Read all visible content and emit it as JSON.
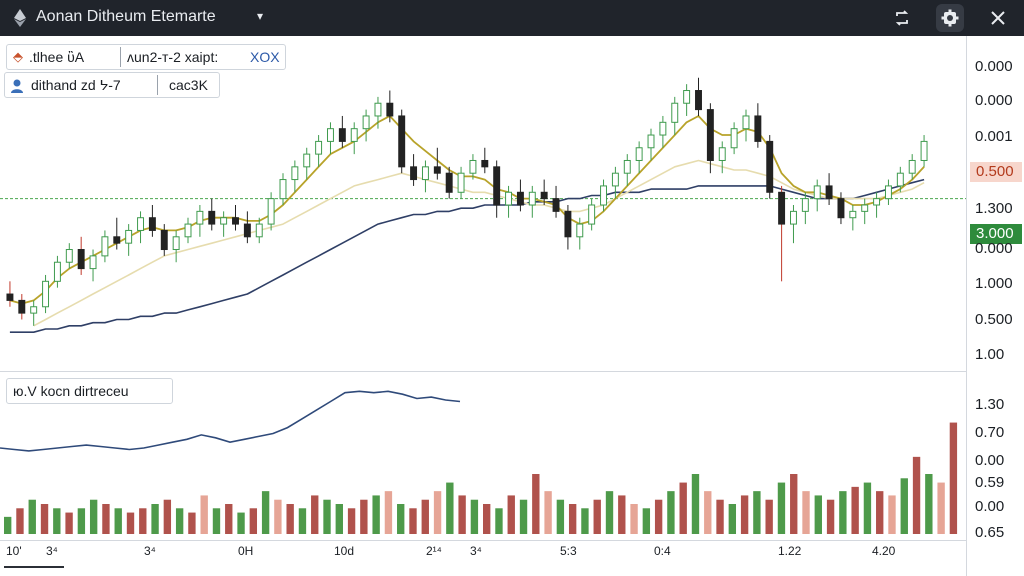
{
  "window": {
    "title": "Aonan Ditheum Etemarte",
    "title_caret": "▾"
  },
  "toolbar": {
    "sync_icon": "sync-icon",
    "settings_icon": "gear-icon",
    "close_icon": "close-icon"
  },
  "legends": {
    "top": {
      "symbol": "⬘",
      "label_1": ".tlhee ὒA",
      "label_2": "ᴧun2-ᴛ-2 xaipt:",
      "label_3": "XOX"
    },
    "second": {
      "icon": "user-icon",
      "label_1": "dithand zd ᔭ-7",
      "label_2": "cac3K"
    },
    "indicator": {
      "label": "ю.V koᴄn dirtreᴄeu"
    }
  },
  "axes": {
    "main_right_labels": [
      "0.000",
      "0.000",
      "0.001",
      "1.300",
      "0.000",
      "1.000",
      "0.500",
      "1.00"
    ],
    "price_tag_red": "0.500",
    "price_tag_green": "3.000",
    "sub_right_labels": [
      "1.30",
      "0.70",
      "0.00",
      "0.59",
      "0.00",
      "0.65"
    ],
    "x_labels": [
      "10'",
      "3⁴",
      "3⁴",
      "0H",
      "10d",
      "2¹⁴",
      "3⁴",
      "5:3",
      "0:4",
      "1.22",
      "4.20"
    ]
  },
  "colors": {
    "up": "#3f9b4e",
    "down": "#222222",
    "ma_fast": "#b8a32a",
    "ma_mid": "#e6dcae",
    "ma_slow": "#2f3f66",
    "ref_line": "#4aa64f",
    "vol_up": "#4e9a4a",
    "vol_down": "#b0524c",
    "vol_light": "#e6a596"
  },
  "chart_data": [
    {
      "type": "candlestick",
      "candles": [
        [
          0.82,
          0.86,
          0.78,
          0.8
        ],
        [
          0.8,
          0.82,
          0.74,
          0.76
        ],
        [
          0.76,
          0.8,
          0.72,
          0.78
        ],
        [
          0.78,
          0.88,
          0.76,
          0.86
        ],
        [
          0.86,
          0.94,
          0.84,
          0.92
        ],
        [
          0.92,
          0.98,
          0.9,
          0.96
        ],
        [
          0.96,
          1.0,
          0.88,
          0.9
        ],
        [
          0.9,
          0.96,
          0.86,
          0.94
        ],
        [
          0.94,
          1.02,
          0.92,
          1.0
        ],
        [
          1.0,
          1.06,
          0.96,
          0.98
        ],
        [
          0.98,
          1.04,
          0.94,
          1.02
        ],
        [
          1.02,
          1.08,
          0.98,
          1.06
        ],
        [
          1.06,
          1.1,
          1.0,
          1.02
        ],
        [
          1.02,
          1.04,
          0.94,
          0.96
        ],
        [
          0.96,
          1.02,
          0.92,
          1.0
        ],
        [
          1.0,
          1.06,
          0.98,
          1.04
        ],
        [
          1.04,
          1.1,
          1.0,
          1.08
        ],
        [
          1.08,
          1.12,
          1.02,
          1.04
        ],
        [
          1.04,
          1.08,
          1.0,
          1.06
        ],
        [
          1.06,
          1.1,
          1.02,
          1.04
        ],
        [
          1.04,
          1.08,
          0.98,
          1.0
        ],
        [
          1.0,
          1.06,
          0.98,
          1.04
        ],
        [
          1.04,
          1.14,
          1.02,
          1.12
        ],
        [
          1.12,
          1.2,
          1.1,
          1.18
        ],
        [
          1.18,
          1.24,
          1.14,
          1.22
        ],
        [
          1.22,
          1.28,
          1.18,
          1.26
        ],
        [
          1.26,
          1.32,
          1.22,
          1.3
        ],
        [
          1.3,
          1.36,
          1.26,
          1.34
        ],
        [
          1.34,
          1.38,
          1.28,
          1.3
        ],
        [
          1.3,
          1.36,
          1.26,
          1.34
        ],
        [
          1.34,
          1.4,
          1.3,
          1.38
        ],
        [
          1.38,
          1.44,
          1.34,
          1.42
        ],
        [
          1.42,
          1.46,
          1.36,
          1.38
        ],
        [
          1.38,
          1.4,
          1.2,
          1.22
        ],
        [
          1.22,
          1.26,
          1.16,
          1.18
        ],
        [
          1.18,
          1.24,
          1.14,
          1.22
        ],
        [
          1.22,
          1.28,
          1.18,
          1.2
        ],
        [
          1.2,
          1.22,
          1.12,
          1.14
        ],
        [
          1.14,
          1.22,
          1.12,
          1.2
        ],
        [
          1.2,
          1.26,
          1.18,
          1.24
        ],
        [
          1.24,
          1.28,
          1.2,
          1.22
        ],
        [
          1.22,
          1.24,
          1.06,
          1.1
        ],
        [
          1.1,
          1.16,
          1.06,
          1.14
        ],
        [
          1.14,
          1.18,
          1.08,
          1.1
        ],
        [
          1.1,
          1.16,
          1.06,
          1.14
        ],
        [
          1.14,
          1.18,
          1.1,
          1.12
        ],
        [
          1.12,
          1.16,
          1.06,
          1.08
        ],
        [
          1.08,
          1.1,
          0.96,
          1.0
        ],
        [
          1.0,
          1.06,
          0.96,
          1.04
        ],
        [
          1.04,
          1.12,
          1.02,
          1.1
        ],
        [
          1.1,
          1.18,
          1.08,
          1.16
        ],
        [
          1.16,
          1.22,
          1.12,
          1.2
        ],
        [
          1.2,
          1.26,
          1.16,
          1.24
        ],
        [
          1.24,
          1.3,
          1.2,
          1.28
        ],
        [
          1.28,
          1.34,
          1.24,
          1.32
        ],
        [
          1.32,
          1.38,
          1.28,
          1.36
        ],
        [
          1.36,
          1.44,
          1.32,
          1.42
        ],
        [
          1.42,
          1.48,
          1.38,
          1.46
        ],
        [
          1.46,
          1.5,
          1.38,
          1.4
        ],
        [
          1.4,
          1.42,
          1.2,
          1.24
        ],
        [
          1.24,
          1.3,
          1.2,
          1.28
        ],
        [
          1.28,
          1.36,
          1.26,
          1.34
        ],
        [
          1.34,
          1.4,
          1.3,
          1.38
        ],
        [
          1.38,
          1.42,
          1.28,
          1.3
        ],
        [
          1.3,
          1.32,
          1.12,
          1.14
        ],
        [
          1.14,
          1.16,
          0.86,
          1.04
        ],
        [
          1.04,
          1.1,
          0.98,
          1.08
        ],
        [
          1.08,
          1.14,
          1.04,
          1.12
        ],
        [
          1.12,
          1.18,
          1.08,
          1.16
        ],
        [
          1.16,
          1.2,
          1.1,
          1.12
        ],
        [
          1.12,
          1.14,
          1.04,
          1.06
        ],
        [
          1.06,
          1.1,
          1.02,
          1.08
        ],
        [
          1.08,
          1.12,
          1.04,
          1.1
        ],
        [
          1.1,
          1.14,
          1.06,
          1.12
        ],
        [
          1.12,
          1.18,
          1.1,
          1.16
        ],
        [
          1.16,
          1.22,
          1.14,
          1.2
        ],
        [
          1.2,
          1.26,
          1.18,
          1.24
        ],
        [
          1.24,
          1.32,
          1.22,
          1.3
        ]
      ],
      "moving_averages": {
        "fast": [
          0.8,
          0.79,
          0.8,
          0.83,
          0.87,
          0.9,
          0.92,
          0.94,
          0.96,
          0.98,
          1.0,
          1.02,
          1.03,
          1.02,
          1.02,
          1.03,
          1.05,
          1.06,
          1.06,
          1.06,
          1.05,
          1.05,
          1.07,
          1.1,
          1.14,
          1.18,
          1.22,
          1.26,
          1.28,
          1.3,
          1.33,
          1.36,
          1.38,
          1.34,
          1.3,
          1.27,
          1.24,
          1.21,
          1.19,
          1.19,
          1.18,
          1.15,
          1.14,
          1.12,
          1.12,
          1.11,
          1.1,
          1.06,
          1.04,
          1.05,
          1.08,
          1.12,
          1.16,
          1.2,
          1.24,
          1.28,
          1.32,
          1.36,
          1.38,
          1.34,
          1.32,
          1.32,
          1.34,
          1.33,
          1.28,
          1.2,
          1.16,
          1.14,
          1.14,
          1.13,
          1.12,
          1.1,
          1.1,
          1.11,
          1.13,
          1.15,
          1.18,
          1.22
        ],
        "mid": [
          null,
          null,
          0.72,
          0.74,
          0.76,
          0.78,
          0.8,
          0.82,
          0.84,
          0.86,
          0.88,
          0.9,
          0.92,
          0.94,
          0.95,
          0.96,
          0.97,
          0.98,
          0.99,
          1.0,
          1.01,
          1.02,
          1.03,
          1.04,
          1.06,
          1.08,
          1.1,
          1.12,
          1.14,
          1.16,
          1.17,
          1.18,
          1.19,
          1.2,
          1.19,
          1.18,
          1.17,
          1.16,
          1.15,
          1.14,
          1.14,
          1.13,
          1.12,
          1.11,
          1.1,
          1.1,
          1.09,
          1.08,
          1.08,
          1.09,
          1.1,
          1.12,
          1.14,
          1.16,
          1.18,
          1.2,
          1.22,
          1.23,
          1.24,
          1.23,
          1.22,
          1.21,
          1.21,
          1.2,
          1.19,
          1.17,
          1.15,
          1.14,
          1.13,
          1.12,
          1.12,
          1.12,
          1.12,
          1.12,
          1.13,
          1.14,
          1.15,
          1.17
        ],
        "slow": [
          0.7,
          0.7,
          0.7,
          0.71,
          0.71,
          0.72,
          0.72,
          0.73,
          0.73,
          0.74,
          0.74,
          0.75,
          0.75,
          0.76,
          0.76,
          0.77,
          0.78,
          0.79,
          0.8,
          0.81,
          0.82,
          0.84,
          0.86,
          0.88,
          0.9,
          0.92,
          0.94,
          0.96,
          0.98,
          1.0,
          1.02,
          1.04,
          1.05,
          1.06,
          1.07,
          1.07,
          1.08,
          1.08,
          1.09,
          1.09,
          1.1,
          1.1,
          1.1,
          1.1,
          1.11,
          1.11,
          1.11,
          1.12,
          1.12,
          1.13,
          1.13,
          1.14,
          1.14,
          1.14,
          1.15,
          1.15,
          1.15,
          1.15,
          1.16,
          1.16,
          1.16,
          1.16,
          1.16,
          1.16,
          1.16,
          1.15,
          1.14,
          1.13,
          1.12,
          1.12,
          1.12,
          1.12,
          1.13,
          1.14,
          1.15,
          1.16,
          1.17,
          1.18
        ]
      },
      "reference_line": 1.12,
      "ylim": [
        0.6,
        1.6
      ]
    },
    {
      "type": "line",
      "values": [
        0.22,
        0.2,
        0.18,
        0.2,
        0.22,
        0.24,
        0.26,
        0.24,
        0.22,
        0.2,
        0.22,
        0.26,
        0.3,
        0.34,
        0.4,
        0.36,
        0.3,
        0.34,
        0.38,
        0.42,
        0.5,
        0.62,
        0.74,
        0.86,
        0.98,
        1.0,
        0.98,
        1.0,
        0.96,
        0.9,
        0.92,
        0.88,
        0.86
      ],
      "ylim": [
        0.0,
        1.1
      ]
    },
    {
      "type": "bar",
      "series": "volume",
      "values": [
        0.2,
        0.3,
        0.4,
        0.35,
        0.3,
        0.25,
        0.3,
        0.4,
        0.35,
        0.3,
        0.25,
        0.3,
        0.35,
        0.4,
        0.3,
        0.25,
        0.45,
        0.3,
        0.35,
        0.25,
        0.3,
        0.5,
        0.4,
        0.35,
        0.3,
        0.45,
        0.4,
        0.35,
        0.3,
        0.4,
        0.45,
        0.5,
        0.35,
        0.3,
        0.4,
        0.5,
        0.6,
        0.45,
        0.4,
        0.35,
        0.3,
        0.45,
        0.4,
        0.7,
        0.5,
        0.4,
        0.35,
        0.3,
        0.4,
        0.5,
        0.45,
        0.35,
        0.3,
        0.4,
        0.5,
        0.6,
        0.7,
        0.5,
        0.4,
        0.35,
        0.45,
        0.5,
        0.4,
        0.6,
        0.7,
        0.5,
        0.45,
        0.4,
        0.5,
        0.55,
        0.6,
        0.5,
        0.45,
        0.65,
        0.9,
        0.7,
        0.6,
        1.3
      ],
      "directions": [
        "u",
        "d",
        "u",
        "d",
        "u",
        "d",
        "u",
        "u",
        "d",
        "u",
        "d",
        "d",
        "u",
        "d",
        "u",
        "d",
        "l",
        "u",
        "d",
        "u",
        "d",
        "u",
        "l",
        "d",
        "u",
        "d",
        "u",
        "u",
        "d",
        "d",
        "u",
        "l",
        "u",
        "d",
        "d",
        "l",
        "u",
        "d",
        "u",
        "d",
        "u",
        "d",
        "u",
        "d",
        "l",
        "u",
        "d",
        "u",
        "d",
        "u",
        "d",
        "l",
        "u",
        "d",
        "u",
        "d",
        "u",
        "l",
        "d",
        "u",
        "d",
        "u",
        "d",
        "u",
        "d",
        "l",
        "u",
        "d",
        "u",
        "d",
        "u",
        "d",
        "l",
        "u",
        "d",
        "u",
        "l",
        "d"
      ]
    }
  ]
}
